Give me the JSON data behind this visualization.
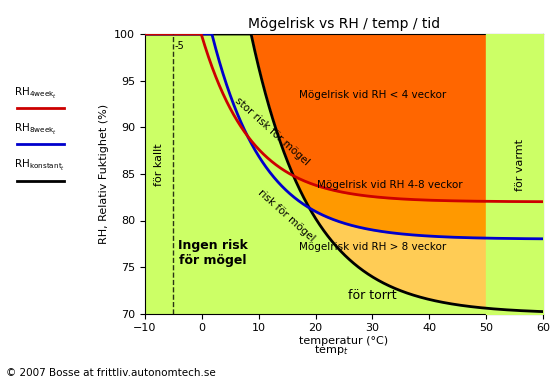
{
  "title": "Mögelrisk vs RH / temp / tid",
  "ylabel": "RH, Relativ Fuktighet (%)",
  "xlim": [
    -10,
    60
  ],
  "ylim": [
    70,
    100
  ],
  "xticks": [
    -10,
    0,
    10,
    20,
    30,
    40,
    50,
    60
  ],
  "yticks": [
    70,
    75,
    80,
    85,
    90,
    95,
    100
  ],
  "bg_color_plot": "#ccff66",
  "color_dark_orange": "#ff6600",
  "color_mid_orange": "#ff9900",
  "color_light_orange": "#ffcc55",
  "color_red_curve": "#cc0000",
  "color_blue_curve": "#0000cc",
  "color_black_curve": "#000000",
  "dashed_x": -5,
  "copyright": "© 2007 Bosse at frittliv.autonomtech.se",
  "title_fontsize": 10,
  "curve_black": {
    "a": 70,
    "b": 32,
    "c": 0.095,
    "d": 8
  },
  "curve_blue": {
    "a": 78,
    "b": 24,
    "c": 0.11,
    "d": 1
  },
  "curve_red": {
    "a": 82,
    "b": 20,
    "c": 0.115,
    "d": -1
  }
}
